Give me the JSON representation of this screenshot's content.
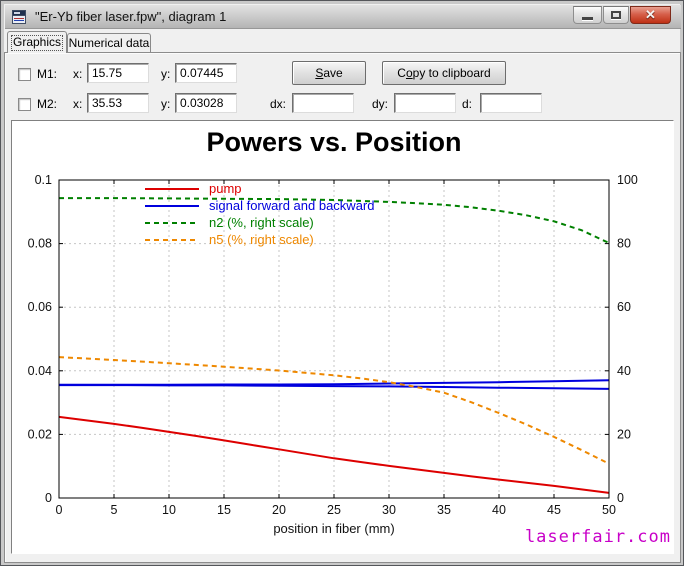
{
  "window": {
    "title": "\"Er-Yb fiber laser.fpw\", diagram 1"
  },
  "tabs": [
    {
      "label": "Graphics",
      "active": true
    },
    {
      "label": "Numerical data",
      "active": false
    }
  ],
  "markers": {
    "m1": {
      "label": "M1:",
      "x_label": "x:",
      "x_value": "15.75",
      "y_label": "y:",
      "y_value": "0.07445"
    },
    "m2": {
      "label": "M2:",
      "x_label": "x:",
      "x_value": "35.53",
      "y_label": "y:",
      "y_value": "0.03028"
    },
    "dx_label": "dx:",
    "dx_value": "",
    "dy_label": "dy:",
    "dy_value": "",
    "d_label": "d:",
    "d_value": ""
  },
  "toolbar": {
    "save": {
      "label": "Save",
      "accel_index": 0
    },
    "copy": {
      "label": "Copy to clipboard",
      "accel_index": 1
    }
  },
  "watermark": "laserfair.com",
  "chart_data": {
    "type": "line",
    "title": "Powers vs. Position",
    "xlabel": "position in fiber (mm)",
    "xlim": [
      0,
      50
    ],
    "x_ticks": [
      0,
      5,
      10,
      15,
      20,
      25,
      30,
      35,
      40,
      45,
      50
    ],
    "left_axis": {
      "lim": [
        0,
        0.1
      ],
      "ticks": [
        0,
        0.02,
        0.04,
        0.06,
        0.08,
        0.1
      ],
      "labels": [
        "0",
        "0.02",
        "0.04",
        "0.06",
        "0.08",
        "0.1"
      ]
    },
    "right_axis": {
      "lim": [
        0,
        100
      ],
      "ticks": [
        0,
        20,
        40,
        60,
        80,
        100
      ]
    },
    "grid": true,
    "grid_color": "#c6c6c6",
    "legend_position": "top-left",
    "series": [
      {
        "name": "pump",
        "legend": "pump",
        "color": "#dd0000",
        "style": "solid",
        "axis": "left",
        "x": [
          0,
          2.5,
          5,
          7.5,
          10,
          12.5,
          15,
          17.5,
          20,
          22.5,
          25,
          27.5,
          30,
          32.5,
          35,
          37.5,
          40,
          42.5,
          45,
          47.5,
          50
        ],
        "y": [
          0.0255,
          0.0244,
          0.0233,
          0.0221,
          0.0208,
          0.0195,
          0.0181,
          0.0167,
          0.0153,
          0.0139,
          0.0125,
          0.0113,
          0.0101,
          0.009,
          0.0079,
          0.0068,
          0.0058,
          0.0048,
          0.0038,
          0.0027,
          0.0016
        ]
      },
      {
        "name": "signal-forward",
        "legend": "signal forward and backward",
        "color": "#0000dd",
        "style": "solid",
        "axis": "left",
        "x": [
          0,
          5,
          10,
          15,
          20,
          25,
          30,
          35,
          40,
          45,
          50
        ],
        "y": [
          0.0356,
          0.0356,
          0.0356,
          0.0357,
          0.0357,
          0.0358,
          0.036,
          0.0362,
          0.0364,
          0.0367,
          0.037
        ]
      },
      {
        "name": "signal-backward",
        "legend": null,
        "color": "#0000dd",
        "style": "solid",
        "axis": "left",
        "x": [
          0,
          5,
          10,
          15,
          20,
          25,
          30,
          35,
          40,
          45,
          50
        ],
        "y": [
          0.0355,
          0.0355,
          0.0354,
          0.0354,
          0.0353,
          0.0352,
          0.0351,
          0.0349,
          0.0347,
          0.0345,
          0.0343
        ]
      },
      {
        "name": "n2",
        "legend": "n2 (%, right scale)",
        "color": "#008000",
        "style": "dashed",
        "axis": "right",
        "x": [
          0,
          5,
          10,
          15,
          20,
          25,
          30,
          32.5,
          35,
          37.5,
          40,
          42.5,
          45,
          47.5,
          50
        ],
        "y": [
          94.3,
          94.3,
          94.2,
          94.1,
          94.0,
          93.7,
          93.1,
          92.7,
          92.2,
          91.4,
          90.3,
          88.9,
          87.0,
          84.2,
          80.2
        ]
      },
      {
        "name": "n5",
        "legend": "n5 (%, right scale)",
        "color": "#ee8800",
        "style": "dashed",
        "axis": "right",
        "x": [
          0,
          5,
          10,
          15,
          20,
          25,
          27.5,
          30,
          32.5,
          35,
          37.5,
          40,
          42.5,
          45,
          47.5,
          50
        ],
        "y": [
          44.3,
          43.4,
          42.4,
          41.3,
          40.1,
          38.6,
          37.6,
          36.4,
          34.9,
          33.1,
          30.1,
          26.7,
          23.1,
          19.2,
          15.1,
          10.8
        ]
      }
    ]
  }
}
